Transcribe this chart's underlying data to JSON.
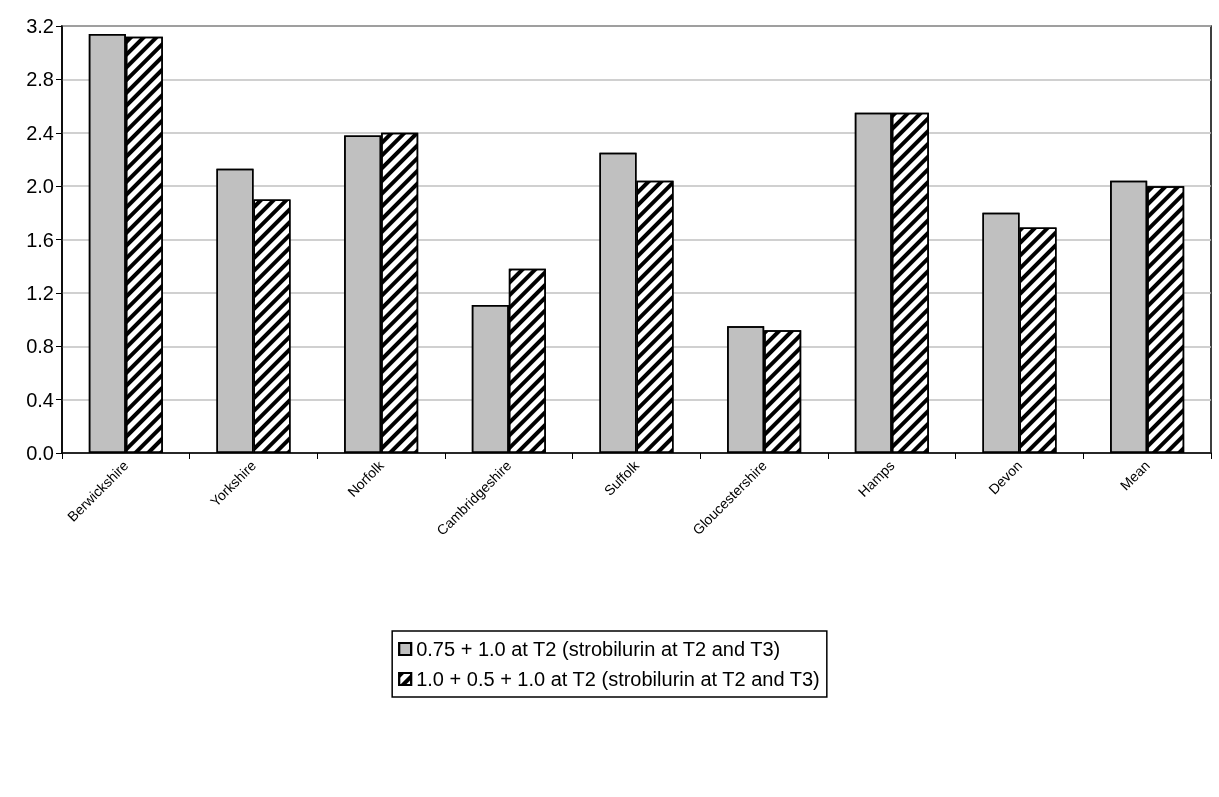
{
  "chart_data": {
    "type": "bar",
    "categories": [
      "Berwickshire",
      "Yorkshire",
      "Norfolk",
      "Cambridgeshire",
      "Suffolk",
      "Gloucestershire",
      "Hamps",
      "Devon",
      "Mean"
    ],
    "series": [
      {
        "name": "0.75 + 1.0 at T2 (strobilurin at T2 and T3)",
        "color": "#c0c0c0",
        "values": [
          3.14,
          2.13,
          2.38,
          1.11,
          2.25,
          0.95,
          2.55,
          1.8,
          2.04
        ]
      },
      {
        "name": "1.0 + 0.5 + 1.0 at T2 (strobilurin at T2 and T3)",
        "color": "#ffffff",
        "values": [
          3.12,
          1.9,
          2.4,
          1.38,
          2.04,
          0.92,
          2.55,
          1.69,
          2.0
        ]
      }
    ],
    "ylim": [
      0,
      3.2
    ],
    "yticks": [
      {
        "value": 0,
        "label": "0.0"
      },
      0.4,
      0.8,
      1.2,
      1.6,
      {
        "value": 2,
        "label": "2.0"
      },
      2.4,
      2.8,
      3.2
    ],
    "grid": "y",
    "legend": "bottom"
  }
}
